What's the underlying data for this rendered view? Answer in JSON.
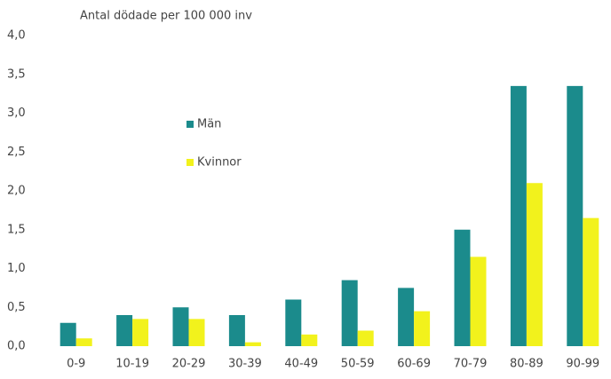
{
  "chart_data": {
    "type": "bar",
    "title": "Antal dödade per 100 000 inv",
    "categories": [
      "0-9",
      "10-19",
      "20-29",
      "30-39",
      "40-49",
      "50-59",
      "60-69",
      "70-79",
      "80-89",
      "90-99"
    ],
    "series": [
      {
        "name": "Män",
        "color": "#1b8b8c",
        "values": [
          0.3,
          0.4,
          0.5,
          0.4,
          0.6,
          0.85,
          0.75,
          1.5,
          3.35,
          3.35
        ]
      },
      {
        "name": "Kvinnor",
        "color": "#f2f21c",
        "values": [
          0.1,
          0.35,
          0.35,
          0.05,
          0.15,
          0.2,
          0.45,
          1.15,
          2.1,
          1.65
        ]
      }
    ],
    "ylim": [
      0,
      4
    ],
    "yticks": [
      {
        "value": 0,
        "label": "0,0"
      },
      {
        "value": 0.5,
        "label": "0,5"
      },
      {
        "value": 1,
        "label": "1,0"
      },
      {
        "value": 1.5,
        "label": "1,5"
      },
      {
        "value": 2,
        "label": "2,0"
      },
      {
        "value": 2.5,
        "label": "2,5"
      },
      {
        "value": 3,
        "label": "3,0"
      },
      {
        "value": 3.5,
        "label": "3,5"
      },
      {
        "value": 4,
        "label": "4,0"
      }
    ],
    "grid": false,
    "legend": "upper-left"
  }
}
